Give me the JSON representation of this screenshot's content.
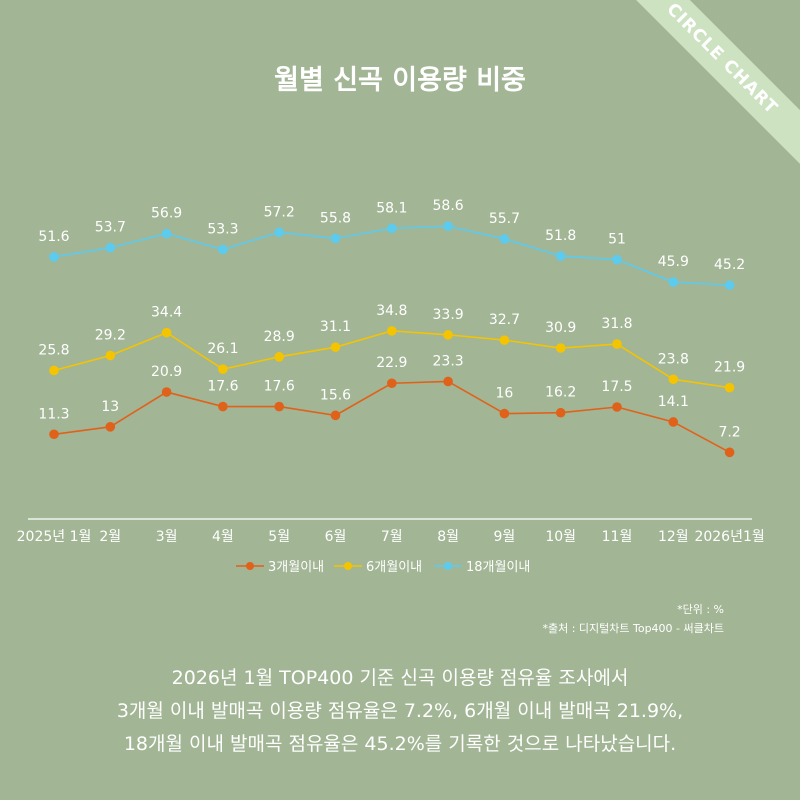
{
  "brand": {
    "ribbon_text": "CIRCLE CHART"
  },
  "notes": {
    "unit": "*단위 : %",
    "source": "*출처 :  디지털차트 Top400 - 써클차트"
  },
  "summary": [
    "2026년 1월 TOP400 기준 신곡 이용량 점유율 조사에서",
    "3개월 이내 발매곡 이용량 점유율은 7.2%, 6개월 이내 발매곡 21.9%,",
    "18개월 이내 발매곡 점유율은 45.2%를 기록한 것으로 나타났습니다."
  ],
  "chart_data": {
    "type": "line",
    "title": "월별 신곡 이용량 비중",
    "categories": [
      "2025년 1월",
      "2월",
      "3월",
      "4월",
      "5월",
      "6월",
      "7월",
      "8월",
      "9월",
      "10월",
      "11월",
      "12월",
      "2026년1월"
    ],
    "series": [
      {
        "name": "3개월이내",
        "color": "#e0621a",
        "values": [
          11.3,
          13,
          20.9,
          17.6,
          17.6,
          15.6,
          22.9,
          23.3,
          16,
          16.2,
          17.5,
          14.1,
          7.2
        ]
      },
      {
        "name": "6개월이내",
        "color": "#f5c400",
        "values": [
          25.8,
          29.2,
          34.4,
          26.1,
          28.9,
          31.1,
          34.8,
          33.9,
          32.7,
          30.9,
          31.8,
          23.8,
          21.9
        ]
      },
      {
        "name": "18개월이내",
        "color": "#5ccbee",
        "values": [
          51.6,
          53.7,
          56.9,
          53.3,
          57.2,
          55.8,
          58.1,
          58.6,
          55.7,
          51.8,
          51,
          45.9,
          45.2
        ]
      }
    ],
    "legend_position": "bottom",
    "grid": false
  }
}
